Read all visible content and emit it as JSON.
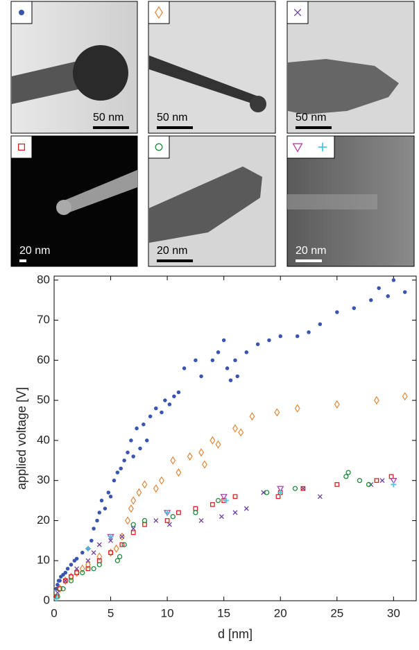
{
  "panels": [
    {
      "scale_bar": "50 nm"
    },
    {
      "scale_bar": "50 nm"
    },
    {
      "scale_bar": "50 nm"
    },
    {
      "scale_bar": "20 nm"
    },
    {
      "scale_bar": "20 nm"
    },
    {
      "scale_bar": "20 nm"
    }
  ],
  "chart_data": {
    "type": "scatter",
    "x_label": "d [nm]",
    "y_label": "applied voltage [V]",
    "xlim": [
      0,
      32
    ],
    "ylim": [
      0,
      81
    ],
    "xticks": [
      0,
      5,
      10,
      15,
      20,
      25,
      30
    ],
    "yticks": [
      0,
      10,
      20,
      30,
      40,
      50,
      60,
      70,
      80
    ],
    "grid": false,
    "series": [
      {
        "color": "#3a55b0",
        "marker": "dot",
        "x": [
          0.1,
          0.2,
          0.3,
          0.4,
          0.5,
          0.6,
          0.8,
          1.0,
          1.2,
          1.5,
          1.8,
          2.0,
          2.5,
          3.0,
          3.3,
          3.5,
          3.8,
          4.0,
          4.2,
          4.5,
          4.8,
          5.0,
          5.3,
          5.6,
          5.9,
          6.2,
          6.5,
          6.8,
          7.0,
          7.3,
          7.6,
          7.9,
          8.2,
          8.5,
          9.0,
          9.5,
          9.8,
          10.2,
          10.6,
          11.0,
          11.5,
          12.5,
          13.0,
          14.0,
          14.5,
          15.0,
          15.3,
          15.6,
          16.0,
          16.2,
          17.0,
          18.0,
          19.0,
          20.0,
          21.5,
          22.5,
          23.5,
          25.0,
          26.5,
          28.0,
          28.7,
          29.5,
          30.0,
          31.0
        ],
        "values": [
          1,
          3,
          4,
          5,
          5,
          6,
          6.5,
          7,
          8,
          9,
          10,
          10.5,
          12,
          13,
          15,
          18,
          20,
          22,
          25,
          23,
          27,
          26,
          30,
          32,
          33,
          35,
          37,
          40,
          36,
          43,
          38,
          44,
          40,
          46,
          48,
          47,
          50,
          49,
          51,
          52,
          58,
          60,
          56,
          60,
          62,
          65,
          58,
          55,
          60,
          56,
          62,
          64,
          65,
          66,
          66,
          67,
          69,
          72,
          73,
          75,
          78,
          76,
          80,
          77
        ]
      },
      {
        "color": "#e0883a",
        "marker": "diamond",
        "x": [
          0.5,
          1,
          1.5,
          2,
          2.5,
          3,
          4,
          5,
          5.5,
          6,
          6.5,
          6.8,
          7,
          7.5,
          8,
          9,
          9.5,
          10.5,
          11,
          12,
          13,
          13.3,
          14,
          14.5,
          16,
          16.5,
          17.5,
          19.7,
          21.5,
          25,
          28.5,
          31
        ],
        "values": [
          3,
          5,
          6,
          7,
          8,
          9,
          11,
          12,
          13,
          16,
          20,
          23,
          25,
          27,
          29,
          28,
          30,
          35,
          32,
          36,
          37,
          34,
          40,
          39,
          43,
          42,
          46,
          47,
          48,
          49,
          50,
          51
        ]
      },
      {
        "color": "#6b3fa0",
        "marker": "cross",
        "x": [
          0.3,
          1,
          2,
          3,
          3.5,
          4,
          5,
          6,
          7,
          9,
          10.2,
          13,
          14.8,
          16,
          17,
          18.5,
          22,
          23.5,
          28,
          29
        ],
        "values": [
          2,
          5,
          8,
          10,
          12,
          14,
          15,
          16,
          18,
          20,
          19,
          20,
          21,
          22,
          23,
          27,
          28,
          26,
          29,
          30
        ]
      },
      {
        "color": "#e02020",
        "marker": "square",
        "x": [
          0.2,
          0.5,
          1,
          1.5,
          2,
          3,
          4,
          5,
          6,
          7,
          8,
          10,
          11,
          12.5,
          14,
          15,
          16,
          19.8,
          20,
          22,
          25,
          28.5,
          29.8
        ],
        "values": [
          1,
          3,
          5,
          6,
          7,
          8,
          10,
          12,
          14,
          17,
          19,
          20,
          22,
          23,
          24,
          25,
          26,
          26,
          27,
          28,
          29,
          30,
          31
        ]
      },
      {
        "color": "#1e8a3c",
        "marker": "ring",
        "x": [
          0.3,
          0.8,
          1.5,
          2.5,
          3.5,
          4,
          5.6,
          5.8,
          6.2,
          7,
          8,
          10.5,
          12.5,
          14.5,
          18.8,
          21.3,
          25.8,
          26,
          27,
          27.8
        ],
        "values": [
          1,
          3,
          5,
          7,
          8,
          9,
          10,
          11,
          14,
          19,
          20,
          21,
          22,
          25,
          27,
          28,
          31,
          32,
          30,
          29
        ]
      },
      {
        "color": "#b23aa8",
        "marker": "triangle",
        "x": [
          5,
          10,
          15,
          20,
          30
        ],
        "values": [
          16,
          22,
          26,
          28,
          30
        ]
      },
      {
        "color": "#4cc8dc",
        "marker": "plus",
        "x": [
          0.2,
          3,
          5,
          10,
          15.2,
          20,
          30
        ],
        "values": [
          0.5,
          13,
          16,
          22,
          25,
          27,
          29
        ]
      }
    ]
  }
}
